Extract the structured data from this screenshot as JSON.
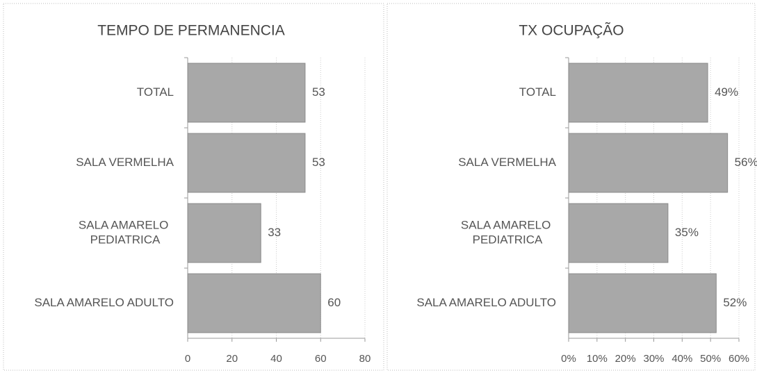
{
  "chart_data": [
    {
      "type": "bar",
      "orientation": "horizontal",
      "title": "TEMPO DE PERMANENCIA",
      "categories": [
        "TOTAL",
        "SALA VERMELHA",
        "SALA AMARELO PEDIATRICA",
        "SALA AMARELO ADULTO"
      ],
      "values": [
        53,
        53,
        33,
        60
      ],
      "color": "#a8a8a8",
      "xlim": [
        0,
        80
      ],
      "xticks": [
        0,
        20,
        40,
        60,
        80
      ],
      "grid": true
    },
    {
      "type": "bar",
      "orientation": "horizontal",
      "title": "TX OCUPAÇÃO",
      "categories": [
        "TOTAL",
        "SALA VERMELHA",
        "SALA AMARELO PEDIATRICA",
        "SALA AMARELO ADULTO"
      ],
      "values": [
        49,
        56,
        35,
        52
      ],
      "value_labels": [
        "49%",
        "56%",
        "35%",
        "52%"
      ],
      "color": "#a8a8a8",
      "xlim": [
        0,
        60
      ],
      "xticks": [
        {
          "value": 0,
          "label": "0%"
        },
        {
          "value": 10,
          "label": "10%"
        },
        {
          "value": 20,
          "label": "20%"
        },
        {
          "value": 30,
          "label": "30%"
        },
        {
          "value": 40,
          "label": "40%"
        },
        {
          "value": 50,
          "label": "50%"
        },
        {
          "value": 60,
          "label": "60%"
        }
      ],
      "grid": true
    }
  ]
}
